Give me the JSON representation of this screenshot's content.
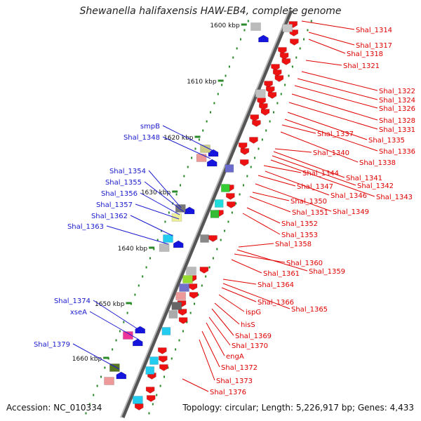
{
  "title": "Shewanella halifaxensis HAW-EB4, complete genome",
  "footer": {
    "accession": "Accession: NC_010334",
    "topology": "Topology: circular; Length: 5,226,917 bp; Genes: 4,433"
  },
  "kbp_labels": [
    "1600 kbp",
    "1610 kbp",
    "1620 kbp",
    "1630 kbp",
    "1640 kbp",
    "1650 kbp",
    "1660 kbp"
  ],
  "left_labels": [
    "smpB",
    "Shal_1348",
    "Shal_1354",
    "Shal_1355",
    "Shal_1356",
    "Shal_1357",
    "Shal_1362",
    "Shal_1363",
    "Shal_1374",
    "xseA",
    "Shal_1379"
  ],
  "right_labels": [
    "Shal_1314",
    "Shal_1317",
    "Shal_1318",
    "Shal_1321",
    "Shal_1322",
    "Shal_1324",
    "Shal_1326",
    "Shal_1328",
    "Shal_1331",
    "Shal_1335",
    "Shal_1336",
    "Shal_1337",
    "Shal_1338",
    "Shal_1340",
    "Shal_1341",
    "Shal_1342",
    "Shal_1343",
    "Shal_1344",
    "Shal_1346",
    "Shal_1347",
    "Shal_1349",
    "Shal_1350",
    "Shal_1351",
    "Shal_1352",
    "Shal_1353",
    "Shal_1358",
    "Shal_1359",
    "Shal_1360",
    "Shal_1361",
    "Shal_1364",
    "Shal_1365",
    "Shal_1366",
    "ispG",
    "hisS",
    "Shal_1369",
    "Shal_1370",
    "engA",
    "Shal_1372",
    "Shal_1373",
    "Shal_1376"
  ],
  "colors": {
    "left_label": "#1a1ad0",
    "right_label": "#e00000",
    "backbone": "#777777",
    "tick": "#2a8a2a",
    "reverse_gene": "#ee1111",
    "forward_gene": "#1515dd"
  }
}
